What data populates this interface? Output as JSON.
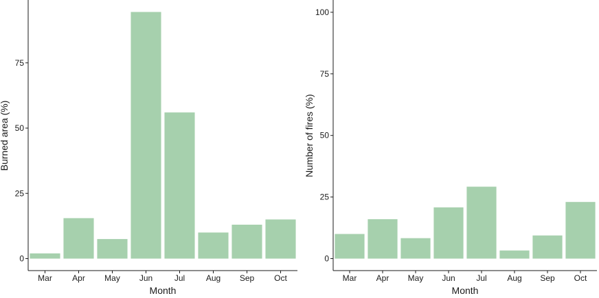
{
  "bar_color": "#a6d0ad",
  "chart_data": [
    {
      "type": "bar",
      "title": "",
      "xlabel": "Month",
      "ylabel": "Burned area (%)",
      "categories": [
        "Mar",
        "Apr",
        "May",
        "Jun",
        "Jul",
        "Aug",
        "Sep",
        "Oct"
      ],
      "values": [
        2,
        15.5,
        7.5,
        94.5,
        56,
        10,
        13,
        15
      ],
      "ylim": [
        0,
        100
      ],
      "yticks": [
        0,
        25,
        50,
        75
      ],
      "grid": false
    },
    {
      "type": "bar",
      "title": "",
      "xlabel": "Month",
      "ylabel": "Number of fires (%)",
      "categories": [
        "Mar",
        "Apr",
        "May",
        "Jun",
        "Jul",
        "Aug",
        "Sep",
        "Oct"
      ],
      "values": [
        10,
        16,
        8.3,
        20.8,
        29.2,
        3.3,
        9.4,
        23
      ],
      "ylim": [
        0,
        105
      ],
      "yticks": [
        0,
        25,
        50,
        75,
        100
      ],
      "grid": false
    }
  ]
}
